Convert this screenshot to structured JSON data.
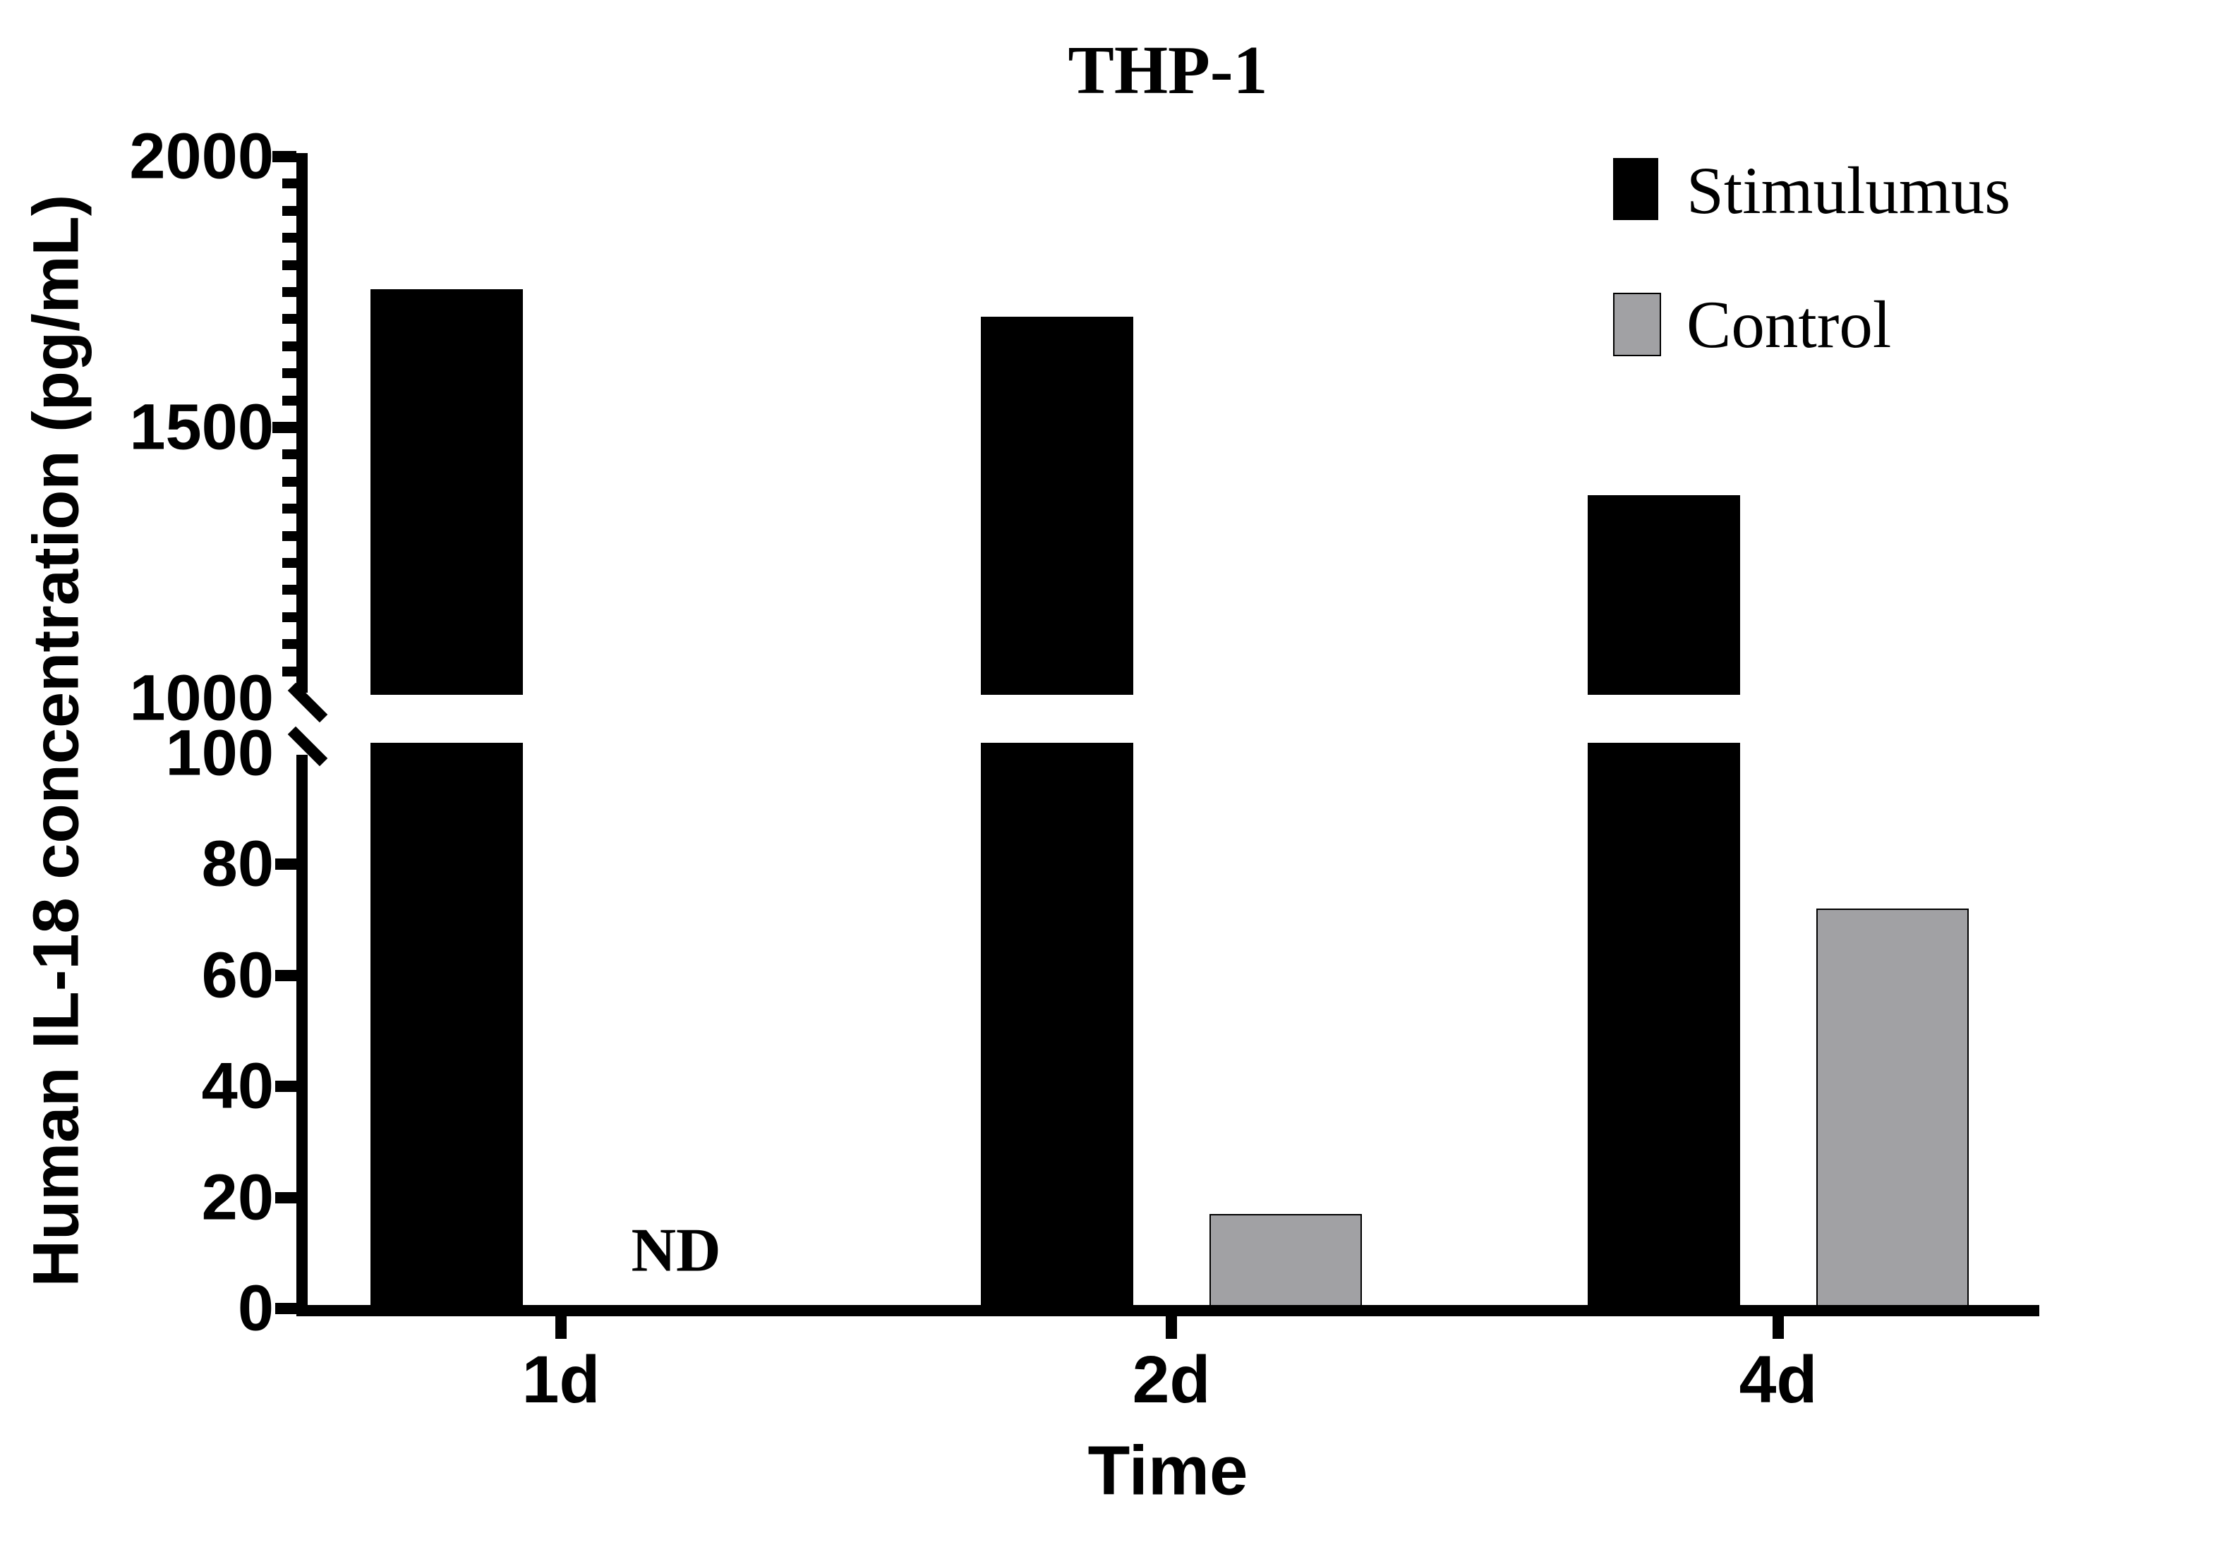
{
  "title": "THP-1",
  "y_axis": {
    "label": "Human IL-18 concentration (pg/mL)",
    "upper_ticks": [
      "2000",
      "1500",
      "1000"
    ],
    "lower_ticks": [
      "100",
      "80",
      "60",
      "40",
      "20",
      "0"
    ]
  },
  "x_axis": {
    "label": "Time",
    "categories": [
      "1d",
      "2d",
      "4d"
    ]
  },
  "legend": [
    {
      "label": "Stimulumus",
      "color": "#000000"
    },
    {
      "label": "Control",
      "color": "#a1a1a4"
    }
  ],
  "nd_label": "ND",
  "chart_data": {
    "type": "bar",
    "title": "THP-1",
    "xlabel": "Time",
    "ylabel": "Human IL-18 concentration (pg/mL)",
    "categories": [
      "1d",
      "2d",
      "4d"
    ],
    "series": [
      {
        "name": "Stimulumus",
        "color": "#000000",
        "values": [
          1755,
          1705,
          1375
        ]
      },
      {
        "name": "Control",
        "color": "#a1a1a4",
        "values": [
          null,
          17,
          72
        ]
      }
    ],
    "annotations": [
      {
        "text": "ND",
        "category": "1d",
        "series": "Control",
        "meaning": "not detected"
      }
    ],
    "axis_break": {
      "lower_range": [
        0,
        100
      ],
      "upper_range": [
        1000,
        2000
      ],
      "lower_tick_step": 20,
      "upper_major_tick_step": 500,
      "upper_minor_tick_step": 50
    },
    "legend_position": "top-right",
    "grid": false,
    "bar_border": {
      "control_bars": "thin black outline",
      "stimulumus_bars": "none"
    }
  }
}
